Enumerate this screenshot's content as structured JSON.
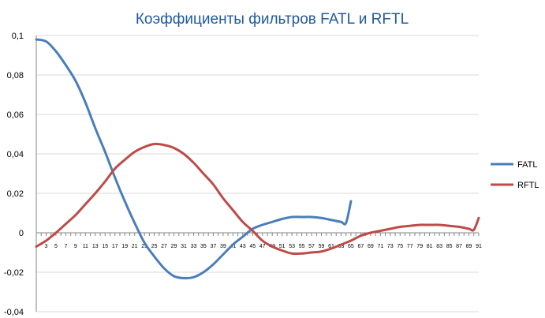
{
  "chart_data": {
    "type": "line",
    "title": "Коэффициенты фильтров FATL и RFTL",
    "ylim": [
      -0.04,
      0.1
    ],
    "yticks": [
      0.1,
      0.08,
      0.06,
      0.04,
      0.02,
      0,
      -0.02,
      -0.04
    ],
    "ytick_labels": [
      "0,1",
      "0,08",
      "0,06",
      "0,04",
      "0,02",
      "0",
      "-0,02",
      "-0,04"
    ],
    "xlim": [
      1,
      91
    ],
    "xticks": [
      3,
      5,
      7,
      9,
      11,
      13,
      15,
      17,
      19,
      21,
      23,
      25,
      27,
      29,
      31,
      33,
      35,
      37,
      39,
      41,
      43,
      45,
      47,
      49,
      51,
      53,
      55,
      57,
      59,
      61,
      63,
      65,
      67,
      69,
      71,
      73,
      75,
      77,
      79,
      81,
      83,
      85,
      87,
      89,
      91
    ],
    "grid": true,
    "legend": "right",
    "colors": {
      "FATL": "#4a7ebb",
      "RFTL": "#be4b48"
    },
    "series": [
      {
        "name": "FATL",
        "x": [
          1,
          3,
          5,
          7,
          9,
          11,
          13,
          15,
          17,
          19,
          21,
          23,
          25,
          27,
          29,
          31,
          33,
          35,
          37,
          39,
          41,
          43,
          45,
          47,
          49,
          51,
          53,
          55,
          57,
          59,
          61,
          63,
          64,
          65
        ],
        "values": [
          0.098,
          0.097,
          0.092,
          0.085,
          0.077,
          0.066,
          0.053,
          0.041,
          0.028,
          0.016,
          0.005,
          -0.005,
          -0.012,
          -0.018,
          -0.022,
          -0.023,
          -0.0225,
          -0.02,
          -0.016,
          -0.011,
          -0.006,
          -0.002,
          0.002,
          0.004,
          0.0055,
          0.007,
          0.008,
          0.008,
          0.008,
          0.0075,
          0.0065,
          0.0055,
          0.005,
          0.016
        ]
      },
      {
        "name": "RFTL",
        "x": [
          1,
          3,
          5,
          7,
          9,
          11,
          13,
          15,
          17,
          19,
          21,
          23,
          25,
          27,
          29,
          31,
          33,
          35,
          37,
          39,
          41,
          43,
          45,
          47,
          49,
          51,
          53,
          55,
          57,
          59,
          61,
          63,
          65,
          67,
          69,
          71,
          73,
          75,
          77,
          79,
          81,
          83,
          85,
          87,
          89,
          90,
          91
        ],
        "values": [
          -0.007,
          -0.004,
          0.0,
          0.0045,
          0.009,
          0.0145,
          0.02,
          0.026,
          0.0325,
          0.037,
          0.041,
          0.0435,
          0.045,
          0.0445,
          0.043,
          0.04,
          0.0355,
          0.03,
          0.0245,
          0.0175,
          0.0115,
          0.0055,
          0.001,
          -0.004,
          -0.007,
          -0.009,
          -0.0105,
          -0.0105,
          -0.01,
          -0.0095,
          -0.008,
          -0.006,
          -0.004,
          -0.0015,
          0.0,
          0.001,
          0.002,
          0.003,
          0.0035,
          0.004,
          0.004,
          0.004,
          0.0035,
          0.003,
          0.002,
          0.0015,
          0.0075
        ]
      }
    ]
  }
}
